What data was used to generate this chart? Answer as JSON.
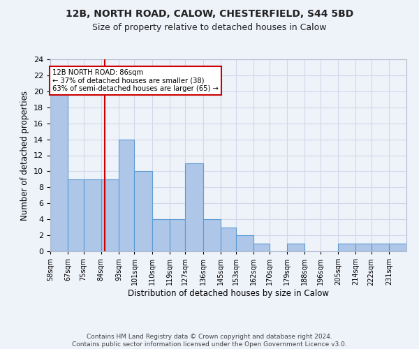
{
  "title1": "12B, NORTH ROAD, CALOW, CHESTERFIELD, S44 5BD",
  "title2": "Size of property relative to detached houses in Calow",
  "xlabel": "Distribution of detached houses by size in Calow",
  "ylabel": "Number of detached properties",
  "bin_labels": [
    "58sqm",
    "67sqm",
    "75sqm",
    "84sqm",
    "93sqm",
    "101sqm",
    "110sqm",
    "119sqm",
    "127sqm",
    "136sqm",
    "145sqm",
    "153sqm",
    "162sqm",
    "170sqm",
    "179sqm",
    "188sqm",
    "196sqm",
    "205sqm",
    "214sqm",
    "222sqm",
    "231sqm"
  ],
  "bin_edges": [
    58,
    67,
    75,
    84,
    93,
    101,
    110,
    119,
    127,
    136,
    145,
    153,
    162,
    170,
    179,
    188,
    196,
    205,
    214,
    222,
    231
  ],
  "counts": [
    20,
    9,
    9,
    9,
    14,
    10,
    4,
    4,
    11,
    4,
    3,
    2,
    1,
    0,
    1,
    0,
    0,
    1,
    1,
    1,
    1
  ],
  "bar_color": "#aec6e8",
  "bar_edge_color": "#5b9bd5",
  "grid_color": "#d0d8e8",
  "vline_x": 86,
  "vline_color": "#cc0000",
  "annotation_line1": "12B NORTH ROAD: 86sqm",
  "annotation_line2": "← 37% of detached houses are smaller (38)",
  "annotation_line3": "63% of semi-detached houses are larger (65) →",
  "annotation_box_color": "#ffffff",
  "annotation_box_edge_color": "#cc0000",
  "ylim": [
    0,
    24
  ],
  "yticks": [
    0,
    2,
    4,
    6,
    8,
    10,
    12,
    14,
    16,
    18,
    20,
    22,
    24
  ],
  "footer": "Contains HM Land Registry data © Crown copyright and database right 2024.\nContains public sector information licensed under the Open Government Licence v3.0.",
  "bg_color": "#eef2f9"
}
